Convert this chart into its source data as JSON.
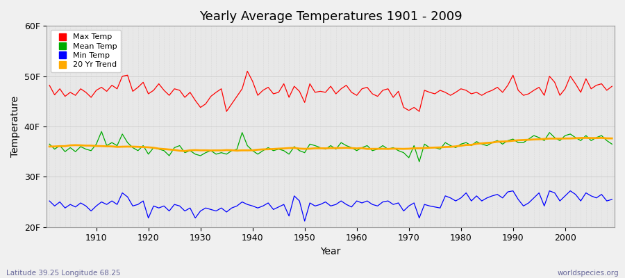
{
  "title": "Yearly Average Temperatures 1901 - 2009",
  "xlabel": "Year",
  "ylabel": "Temperature",
  "subtitle_lat": "Latitude 39.25 Longitude 68.25",
  "credit": "worldspecies.org",
  "years": [
    1901,
    1902,
    1903,
    1904,
    1905,
    1906,
    1907,
    1908,
    1909,
    1910,
    1911,
    1912,
    1913,
    1914,
    1915,
    1916,
    1917,
    1918,
    1919,
    1920,
    1921,
    1922,
    1923,
    1924,
    1925,
    1926,
    1927,
    1928,
    1929,
    1930,
    1931,
    1932,
    1933,
    1934,
    1935,
    1936,
    1937,
    1938,
    1939,
    1940,
    1941,
    1942,
    1943,
    1944,
    1945,
    1946,
    1947,
    1948,
    1949,
    1950,
    1951,
    1952,
    1953,
    1954,
    1955,
    1956,
    1957,
    1958,
    1959,
    1960,
    1961,
    1962,
    1963,
    1964,
    1965,
    1966,
    1967,
    1968,
    1969,
    1970,
    1971,
    1972,
    1973,
    1974,
    1975,
    1976,
    1977,
    1978,
    1979,
    1980,
    1981,
    1982,
    1983,
    1984,
    1985,
    1986,
    1987,
    1988,
    1989,
    1990,
    1991,
    1992,
    1993,
    1994,
    1995,
    1996,
    1997,
    1998,
    1999,
    2000,
    2001,
    2002,
    2003,
    2004,
    2005,
    2006,
    2007,
    2008,
    2009
  ],
  "max_temp": [
    48.2,
    46.3,
    47.5,
    46.0,
    46.8,
    46.2,
    47.5,
    46.8,
    45.8,
    47.2,
    47.8,
    47.0,
    48.2,
    47.5,
    50.0,
    50.2,
    47.0,
    47.8,
    48.8,
    46.5,
    47.2,
    48.5,
    47.2,
    46.2,
    47.5,
    47.2,
    45.8,
    46.8,
    45.2,
    43.8,
    44.5,
    46.0,
    46.8,
    47.5,
    43.0,
    44.5,
    46.0,
    47.5,
    51.0,
    49.0,
    46.2,
    47.2,
    47.8,
    46.5,
    46.8,
    48.5,
    45.8,
    48.0,
    47.0,
    44.8,
    48.5,
    46.8,
    47.0,
    46.8,
    48.0,
    46.5,
    47.5,
    48.2,
    46.8,
    46.2,
    47.5,
    47.8,
    46.5,
    46.0,
    47.2,
    47.5,
    45.8,
    47.0,
    43.8,
    43.2,
    43.8,
    43.0,
    47.2,
    46.8,
    46.5,
    47.2,
    46.8,
    46.2,
    46.8,
    47.5,
    47.2,
    46.5,
    46.8,
    46.2,
    46.8,
    47.2,
    47.8,
    46.8,
    48.2,
    50.2,
    47.2,
    46.2,
    46.5,
    47.2,
    47.8,
    46.2,
    50.0,
    48.8,
    46.2,
    47.5,
    50.0,
    48.5,
    46.8,
    49.5,
    47.5,
    48.2,
    48.5,
    47.2,
    48.0
  ],
  "mean_temp": [
    36.5,
    35.5,
    36.2,
    35.0,
    35.8,
    35.0,
    36.0,
    35.5,
    35.2,
    36.5,
    39.0,
    36.2,
    36.8,
    36.2,
    38.5,
    36.8,
    35.8,
    35.2,
    36.2,
    34.5,
    35.8,
    35.5,
    35.2,
    34.2,
    35.8,
    36.2,
    34.8,
    35.2,
    34.5,
    34.2,
    34.8,
    35.2,
    34.5,
    34.8,
    34.5,
    35.2,
    35.5,
    38.8,
    36.2,
    35.2,
    34.5,
    35.2,
    35.8,
    35.2,
    35.5,
    35.2,
    34.5,
    36.0,
    35.2,
    34.8,
    36.5,
    36.2,
    35.8,
    35.5,
    36.2,
    35.5,
    36.8,
    36.2,
    35.8,
    35.2,
    35.8,
    36.2,
    35.2,
    35.5,
    36.2,
    35.5,
    35.8,
    35.2,
    34.8,
    33.8,
    36.2,
    33.0,
    36.5,
    35.8,
    35.8,
    35.5,
    36.8,
    36.2,
    35.8,
    36.5,
    36.8,
    36.2,
    37.0,
    36.5,
    36.2,
    36.8,
    37.2,
    36.5,
    37.2,
    37.5,
    36.8,
    36.8,
    37.5,
    38.2,
    37.8,
    37.2,
    38.8,
    37.8,
    37.2,
    38.2,
    38.5,
    37.8,
    37.2,
    38.2,
    37.2,
    37.8,
    38.2,
    37.2,
    36.5
  ],
  "min_temp": [
    25.2,
    24.2,
    25.0,
    23.8,
    24.5,
    24.0,
    24.8,
    24.2,
    23.2,
    24.2,
    25.0,
    24.5,
    25.2,
    24.5,
    26.8,
    26.0,
    24.2,
    24.5,
    25.2,
    21.8,
    24.2,
    23.8,
    24.2,
    23.2,
    24.5,
    24.2,
    23.2,
    23.8,
    21.8,
    23.2,
    23.8,
    23.5,
    23.2,
    23.8,
    23.0,
    23.8,
    24.2,
    25.0,
    24.5,
    24.2,
    23.8,
    24.2,
    24.8,
    23.5,
    24.0,
    24.5,
    22.2,
    26.2,
    25.2,
    21.2,
    24.8,
    24.2,
    24.5,
    25.0,
    24.2,
    24.5,
    25.2,
    24.5,
    24.0,
    25.2,
    24.8,
    25.2,
    24.5,
    24.2,
    25.0,
    25.2,
    24.5,
    24.8,
    23.2,
    24.2,
    24.8,
    21.8,
    24.5,
    24.2,
    24.0,
    23.8,
    26.2,
    25.8,
    25.2,
    25.8,
    26.8,
    25.2,
    26.2,
    25.2,
    25.8,
    26.2,
    26.5,
    25.8,
    27.0,
    27.2,
    25.5,
    24.2,
    24.8,
    25.8,
    26.8,
    24.2,
    27.2,
    26.8,
    25.2,
    26.2,
    27.2,
    26.5,
    25.2,
    26.8,
    26.2,
    25.8,
    26.5,
    25.2,
    25.5
  ],
  "bg_color": "#f0f0f0",
  "plot_bg_color": "#e8e8e8",
  "max_color": "#ff0000",
  "mean_color": "#00aa00",
  "min_color": "#0000ff",
  "trend_color": "#ffaa00",
  "grid_color": "#cccccc",
  "ylim_min": 20,
  "ylim_max": 60,
  "yticks": [
    20,
    30,
    40,
    50,
    60
  ],
  "ytick_labels": [
    "20F",
    "30F",
    "40F",
    "50F",
    "60F"
  ],
  "xtick_start": 1910,
  "xtick_end": 2000,
  "xtick_step": 10
}
